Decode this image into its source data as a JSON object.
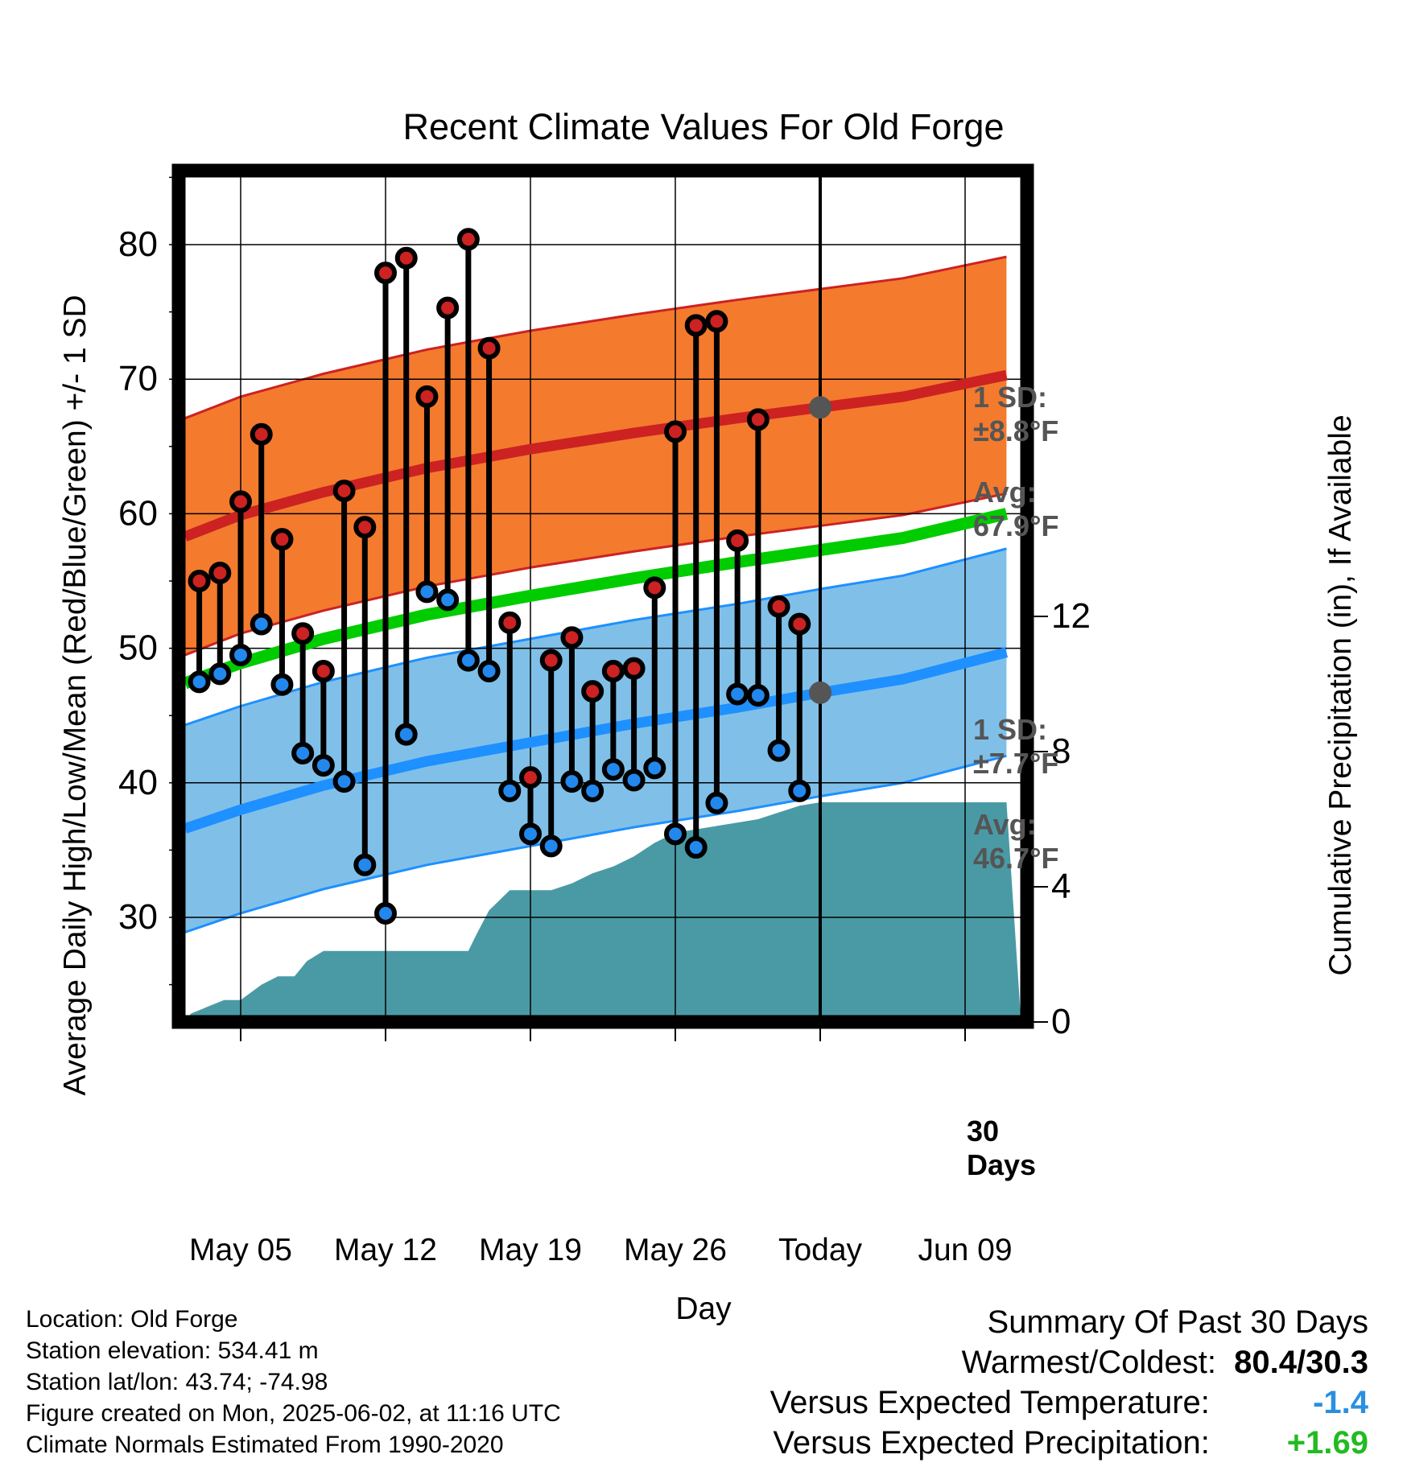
{
  "chart_data": {
    "type": "line",
    "title": "Recent Climate Values For Old Forge",
    "xlabel": "Day",
    "ylabel": "Average Daily High/Low/Mean (Red/Blue/Green) +/- 1 SD",
    "y2label": "Cumulative Precipitation (in), If Available",
    "ylim": [
      23,
      86
    ],
    "y2lim": [
      0,
      29
    ],
    "yticks": [
      "30",
      "40",
      "50",
      "60",
      "70",
      "80"
    ],
    "y2ticks": [
      "0",
      "4",
      "8",
      "12"
    ],
    "xlim": [
      "2025-05-02",
      "2025-06-11"
    ],
    "xticks": [
      {
        "date": "2025-05-05",
        "label": "May 05"
      },
      {
        "date": "2025-05-12",
        "label": "May 12"
      },
      {
        "date": "2025-05-19",
        "label": "May 19"
      },
      {
        "date": "2025-05-26",
        "label": "May 26"
      },
      {
        "date": "2025-06-02",
        "label": "Today"
      },
      {
        "date": "2025-06-09",
        "label": "Jun 09"
      }
    ],
    "grid": true,
    "today": "2025-06-02",
    "today_label": "30 Days",
    "normals": {
      "x": [
        "2025-05-02",
        "2025-05-05",
        "2025-05-09",
        "2025-05-14",
        "2025-05-19",
        "2025-05-24",
        "2025-05-29",
        "2025-06-02",
        "2025-06-06",
        "2025-06-11"
      ],
      "high_mean": [
        58.3,
        59.9,
        61.6,
        63.4,
        64.8,
        66.0,
        67.1,
        67.9,
        68.7,
        70.3
      ],
      "high_sd": 8.8,
      "low_mean": [
        36.6,
        38.0,
        39.8,
        41.6,
        43.0,
        44.4,
        45.6,
        46.7,
        47.7,
        49.7
      ],
      "low_sd": 7.7,
      "daily_mean": [
        47.4,
        48.9,
        50.7,
        52.5,
        53.9,
        55.2,
        56.4,
        57.3,
        58.2,
        60.0
      ]
    },
    "series": [
      {
        "name": "High",
        "color": "#cc2222",
        "x": [
          "2025-05-03",
          "2025-05-04",
          "2025-05-05",
          "2025-05-06",
          "2025-05-07",
          "2025-05-08",
          "2025-05-09",
          "2025-05-10",
          "2025-05-11",
          "2025-05-12",
          "2025-05-13",
          "2025-05-14",
          "2025-05-15",
          "2025-05-16",
          "2025-05-17",
          "2025-05-18",
          "2025-05-19",
          "2025-05-20",
          "2025-05-21",
          "2025-05-22",
          "2025-05-23",
          "2025-05-24",
          "2025-05-25",
          "2025-05-26",
          "2025-05-27",
          "2025-05-28",
          "2025-05-29",
          "2025-05-30",
          "2025-05-31",
          "2025-06-01"
        ],
        "values": [
          55.0,
          55.6,
          60.9,
          65.9,
          58.1,
          51.1,
          48.3,
          61.7,
          59.0,
          77.9,
          79.0,
          68.7,
          75.3,
          80.4,
          72.3,
          51.9,
          40.4,
          49.1,
          50.8,
          46.8,
          48.3,
          48.5,
          54.5,
          66.1,
          74.0,
          74.3,
          58.0,
          67.0,
          53.1,
          51.8
        ]
      },
      {
        "name": "Low",
        "color": "#2288ee",
        "x": [
          "2025-05-03",
          "2025-05-04",
          "2025-05-05",
          "2025-05-06",
          "2025-05-07",
          "2025-05-08",
          "2025-05-09",
          "2025-05-10",
          "2025-05-11",
          "2025-05-12",
          "2025-05-13",
          "2025-05-14",
          "2025-05-15",
          "2025-05-16",
          "2025-05-17",
          "2025-05-18",
          "2025-05-19",
          "2025-05-20",
          "2025-05-21",
          "2025-05-22",
          "2025-05-23",
          "2025-05-24",
          "2025-05-25",
          "2025-05-26",
          "2025-05-27",
          "2025-05-28",
          "2025-05-29",
          "2025-05-30",
          "2025-05-31",
          "2025-06-01"
        ],
        "values": [
          47.5,
          48.1,
          49.5,
          51.8,
          47.3,
          42.2,
          41.3,
          40.1,
          33.9,
          30.3,
          43.6,
          54.2,
          53.6,
          49.1,
          48.3,
          39.4,
          36.2,
          35.3,
          40.1,
          39.4,
          41.0,
          40.2,
          41.1,
          36.2,
          35.2,
          38.5,
          46.6,
          46.5,
          42.4,
          39.4
        ]
      }
    ],
    "precipitation": {
      "x": [
        "2025-05-02",
        "2025-05-02.6",
        "2025-05-03.2",
        "2025-05-03.8",
        "2025-05-04.2",
        "2025-05-05",
        "2025-05-06",
        "2025-05-06.8",
        "2025-05-07.6",
        "2025-05-08.2",
        "2025-05-09",
        "2025-05-10",
        "2025-05-11",
        "2025-05-12",
        "2025-05-13",
        "2025-05-14",
        "2025-05-15",
        "2025-05-16",
        "2025-05-16.4",
        "2025-05-17",
        "2025-05-18",
        "2025-05-19",
        "2025-05-20",
        "2025-05-21",
        "2025-05-22",
        "2025-05-23",
        "2025-05-24",
        "2025-05-25",
        "2025-05-26",
        "2025-05-27",
        "2025-05-28",
        "2025-05-29",
        "2025-05-30",
        "2025-05-31",
        "2025-06-01",
        "2025-06-02",
        "2025-06-11"
      ],
      "values": [
        0.0,
        0.25,
        0.4,
        0.55,
        0.65,
        0.65,
        1.1,
        1.35,
        1.35,
        1.8,
        2.1,
        2.1,
        2.1,
        2.1,
        2.1,
        2.1,
        2.1,
        2.1,
        2.6,
        3.3,
        3.9,
        3.9,
        3.9,
        4.1,
        4.4,
        4.6,
        4.9,
        5.3,
        5.6,
        5.7,
        5.8,
        5.9,
        6.0,
        6.2,
        6.4,
        6.5,
        6.5
      ],
      "color": "#4a9aa5"
    },
    "annotations": {
      "high_sd_label": "1 SD:",
      "high_sd_value": "±8.8",
      "high_avg_label": "Avg:",
      "high_avg_value": "67.9",
      "low_sd_label": "1 SD:",
      "low_sd_value": "±7.7",
      "low_avg_label": "Avg:",
      "low_avg_value": "46.7",
      "degree_unit": "°F",
      "today_count": "30",
      "today_days": "Days"
    },
    "colors": {
      "high_band": "#f47a2e",
      "high_line": "#cc2222",
      "low_band": "#80c0e8",
      "low_line": "#1e90ff",
      "mean_line": "#00cc00",
      "annotation": "#555555"
    }
  },
  "metadata": {
    "location": "Location: Old Forge",
    "elevation": "Station elevation: 534.41 m",
    "latlon": "Station lat/lon: 43.74; -74.98",
    "created": "Figure created on Mon, 2025-06-02, at 11:16 UTC",
    "normals": "Climate Normals Estimated From 1990-2020"
  },
  "summary": {
    "title": "Summary Of Past 30 Days",
    "warmest_coldest_label": "Warmest/Coldest:",
    "warmest_coldest_value": "80.4/30.3",
    "temp_label": "Versus Expected Temperature:",
    "temp_value": "-1.4",
    "temp_color": "#2b8fe0",
    "precip_label": "Versus Expected Precipitation:",
    "precip_value": "+1.69",
    "precip_color": "#22bb22"
  }
}
